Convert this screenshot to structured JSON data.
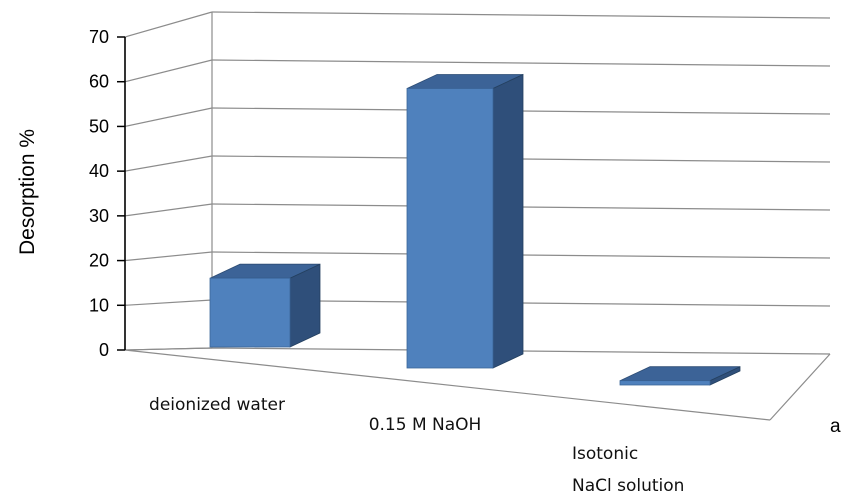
{
  "chart_data": {
    "type": "bar",
    "style": "3d",
    "categories": [
      "deionized water",
      "0.15 M NaOH",
      "Isotonic NaCl solution"
    ],
    "category_lines": [
      [
        "deionized water"
      ],
      [
        "0.15 M NaOH"
      ],
      [
        "Isotonic",
        "NaCl solution"
      ]
    ],
    "values": [
      16,
      65,
      1
    ],
    "ylabel": "Desorption %",
    "ylim": [
      0,
      70
    ],
    "yticks": [
      0,
      10,
      20,
      30,
      40,
      50,
      60,
      70
    ],
    "grid": true,
    "legend": "none",
    "panel_label": "a",
    "colors": {
      "bar_front": "#4F81BD",
      "bar_top": "#3C6397",
      "bar_side": "#2F4F7A",
      "grid": "#8C8C8C",
      "axis": "#000000"
    }
  }
}
